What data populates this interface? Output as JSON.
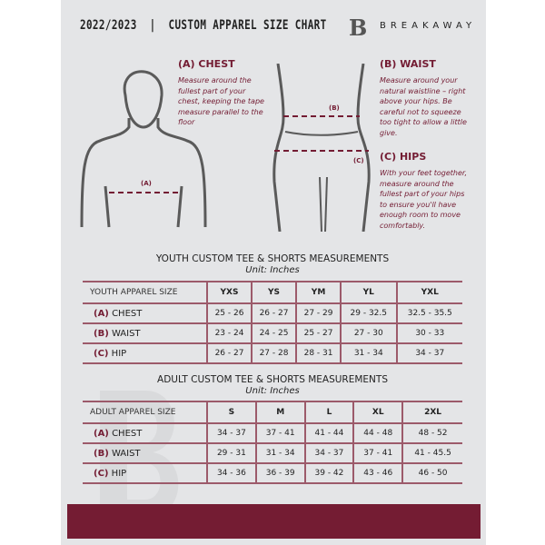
{
  "header": {
    "title": "2022/2023  |  CUSTOM APPAREL SIZE CHART",
    "brand": "BREAKAWAY",
    "logo_letter": "B"
  },
  "measures": {
    "chest": {
      "label": "(A) CHEST",
      "text": "Measure around the fullest part of your chest, keeping the tape measure parallel to the floor",
      "marker": "(A)"
    },
    "waist": {
      "label": "(B) WAIST",
      "text": "Measure around your natural waistline – right above your hips. Be careful not to squeeze too tight to allow a little give.",
      "marker": "(B)"
    },
    "hips": {
      "label": "(C) HIPS",
      "text": "With your feet together, measure around the fullest part of your hips to ensure you'll have enough room to move comfortably.",
      "marker": "(C)"
    }
  },
  "youth": {
    "title": "YOUTH CUSTOM TEE & SHORTS MEASUREMENTS",
    "unit": "Unit: Inches",
    "header": "YOUTH APPAREL SIZE",
    "sizes": [
      "YXS",
      "YS",
      "YM",
      "YL",
      "YXL"
    ],
    "rows": [
      {
        "code": "(A)",
        "name": "CHEST",
        "values": [
          "25 - 26",
          "26 - 27",
          "27 - 29",
          "29 - 32.5",
          "32.5 - 35.5"
        ]
      },
      {
        "code": "(B)",
        "name": "WAIST",
        "values": [
          "23 - 24",
          "24 - 25",
          "25 - 27",
          "27 - 30",
          "30 - 33"
        ]
      },
      {
        "code": "(C)",
        "name": "HIP",
        "values": [
          "26 - 27",
          "27 - 28",
          "28 - 31",
          "31 - 34",
          "34 - 37"
        ]
      }
    ]
  },
  "adult": {
    "title": "ADULT CUSTOM TEE & SHORTS MEASUREMENTS",
    "unit": "Unit: Inches",
    "header": "ADULT APPAREL SIZE",
    "sizes": [
      "S",
      "M",
      "L",
      "XL",
      "2XL"
    ],
    "rows": [
      {
        "code": "(A)",
        "name": "CHEST",
        "values": [
          "34 - 37",
          "37 - 41",
          "41 - 44",
          "44 - 48",
          "48 - 52"
        ]
      },
      {
        "code": "(B)",
        "name": "WAIST",
        "values": [
          "29 - 31",
          "31 - 34",
          "34 - 37",
          "37 - 41",
          "41 - 45.5"
        ]
      },
      {
        "code": "(C)",
        "name": "HIP",
        "values": [
          "34 - 36",
          "36 - 39",
          "39 - 42",
          "43 - 46",
          "46 - 50"
        ]
      }
    ]
  },
  "colors": {
    "accent": "#741c33",
    "panel": "#e4e5e7"
  }
}
